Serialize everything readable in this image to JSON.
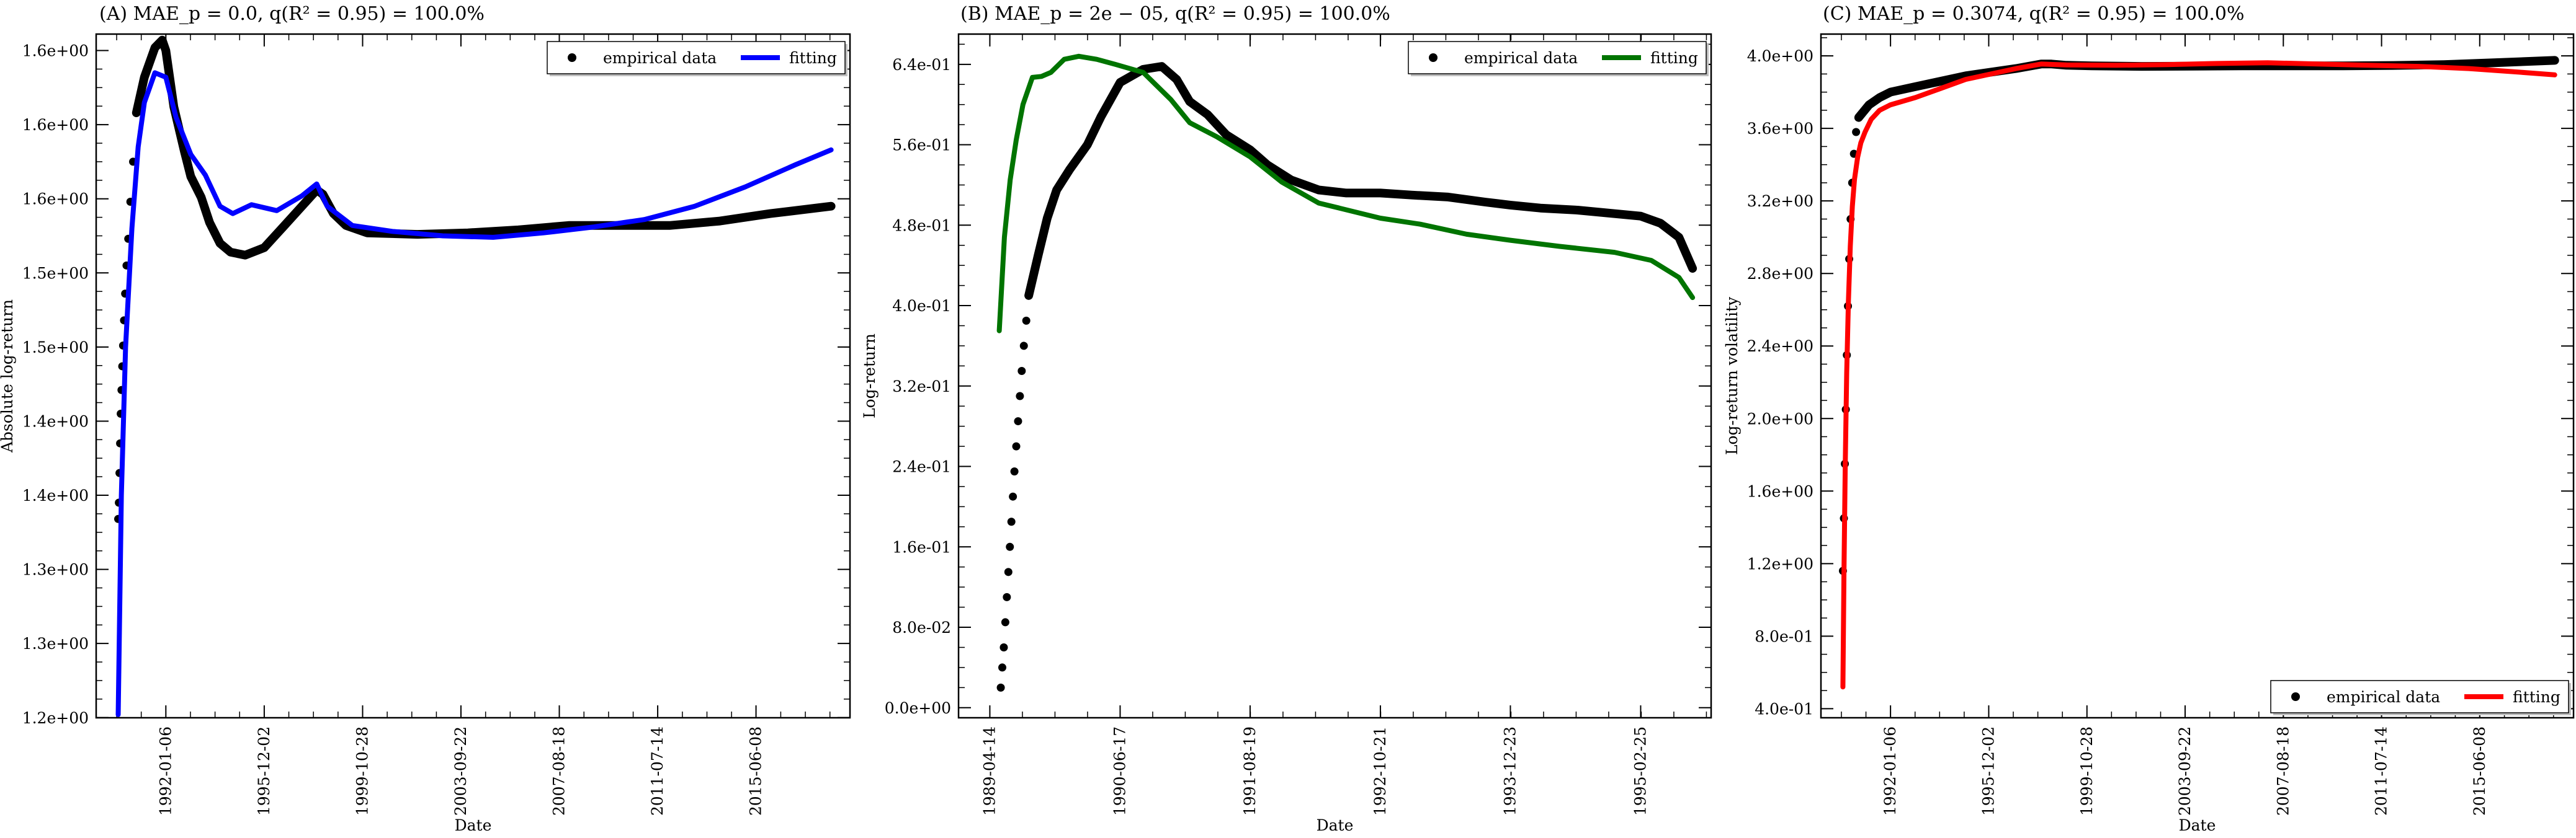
{
  "chart_data": [
    {
      "type": "line",
      "title": "(A) MAE_p = 0.0, q(R² = 0.95) = 100.0%",
      "xlabel": "Date",
      "ylabel": "Absolute log-return",
      "x_range": [
        "1989-04-01",
        "2019-03-01"
      ],
      "ylim": [
        1.1999,
        1.6611
      ],
      "x_tick_labels": [
        "1992-01-06",
        "1995-12-02",
        "1999-10-28",
        "2003-09-22",
        "2007-08-18",
        "2011-07-14",
        "2015-06-08"
      ],
      "y_ticks": [
        1.2,
        1.25,
        1.3,
        1.35,
        1.4,
        1.45,
        1.5,
        1.55,
        1.6,
        1.65
      ],
      "y_tick_labels": [
        "1.2e+00",
        "1.3e+00",
        "1.3e+00",
        "1.4e+00",
        "1.4e+00",
        "1.5e+00",
        "1.5e+00",
        "1.6e+00",
        "1.6e+00",
        "1.6e+00"
      ],
      "legend": {
        "position": "top-right",
        "entries": [
          "empirical data",
          "fitting"
        ]
      },
      "grid": false,
      "series": [
        {
          "name": "empirical data",
          "style": "dots",
          "color": "#000000",
          "x": [
            "1990-02-14",
            "1990-02-24",
            "1990-03-05",
            "1990-03-14",
            "1990-03-23",
            "1990-04-03",
            "1990-04-14",
            "1990-04-26",
            "1990-05-10",
            "1990-05-26",
            "1990-06-15",
            "1990-07-10",
            "1990-08-10",
            "1990-09-18",
            "1990-11-05"
          ],
          "y": [
            1.334,
            1.345,
            1.365,
            1.385,
            1.405,
            1.421,
            1.437,
            1.451,
            1.468,
            1.486,
            1.505,
            1.523,
            1.548,
            1.575,
            1.608
          ]
        },
        {
          "name": "empirical data",
          "style": "line",
          "color": "#000000",
          "x": [
            "1990-11-05",
            "1991-03-01",
            "1991-08-01",
            "1991-11-15",
            "1992-01-06",
            "1992-05-01",
            "1992-10-01",
            "1993-01-01",
            "1993-06-01",
            "1993-10-01",
            "1994-03-01",
            "1994-08-01",
            "1995-03-01",
            "1995-12-01",
            "1996-09-01",
            "1997-06-01",
            "1998-01-01",
            "1998-04-01",
            "1998-09-01",
            "1999-03-01",
            "2000-01-01",
            "2002-01-01",
            "2004-01-01",
            "2006-01-01",
            "2008-01-01",
            "2010-01-01",
            "2012-01-01",
            "2014-01-01",
            "2016-01-01",
            "2018-06-01"
          ],
          "y": [
            1.608,
            1.632,
            1.652,
            1.657,
            1.65,
            1.612,
            1.582,
            1.565,
            1.551,
            1.534,
            1.52,
            1.514,
            1.512,
            1.517,
            1.531,
            1.545,
            1.556,
            1.553,
            1.54,
            1.532,
            1.527,
            1.526,
            1.527,
            1.529,
            1.532,
            1.532,
            1.532,
            1.535,
            1.54,
            1.545
          ]
        },
        {
          "name": "fitting",
          "style": "line",
          "color": "#0000ff",
          "x": [
            "1990-02-14",
            "1990-04-01",
            "1990-06-01",
            "1990-09-01",
            "1990-12-01",
            "1991-03-01",
            "1991-08-01",
            "1992-01-06",
            "1992-06-01",
            "1993-01-01",
            "1993-08-01",
            "1994-03-01",
            "1994-09-01",
            "1995-06-01",
            "1996-06-01",
            "1997-06-01",
            "1998-01-01",
            "1998-06-01",
            "1999-06-01",
            "2001-01-01",
            "2003-01-01",
            "2005-01-01",
            "2007-01-01",
            "2009-01-01",
            "2011-01-01",
            "2013-01-01",
            "2015-01-01",
            "2017-01-01",
            "2018-06-01"
          ],
          "y": [
            1.202,
            1.35,
            1.45,
            1.53,
            1.585,
            1.615,
            1.635,
            1.632,
            1.605,
            1.58,
            1.566,
            1.545,
            1.54,
            1.546,
            1.542,
            1.552,
            1.56,
            1.545,
            1.532,
            1.528,
            1.525,
            1.524,
            1.527,
            1.531,
            1.536,
            1.545,
            1.558,
            1.573,
            1.583
          ]
        }
      ]
    },
    {
      "type": "line",
      "title": "(B) MAE_p = 2e − 05, q(R² = 0.95) = 100.0%",
      "xlabel": "Date",
      "ylabel": "Log-return",
      "x_range": [
        "1989-01-01",
        "1995-10-15"
      ],
      "ylim": [
        -0.01,
        0.6701
      ],
      "x_tick_labels": [
        "1989-04-14",
        "1990-06-17",
        "1991-08-19",
        "1992-10-21",
        "1993-12-23",
        "1995-02-25"
      ],
      "y_ticks": [
        0.0,
        0.08,
        0.16,
        0.24,
        0.32,
        0.4,
        0.48,
        0.56,
        0.64
      ],
      "y_tick_labels": [
        "0.0e+00",
        "8.0e-02",
        "1.6e-01",
        "2.4e-01",
        "3.2e-01",
        "4.0e-01",
        "4.8e-01",
        "5.6e-01",
        "6.4e-01"
      ],
      "legend": {
        "position": "top-right",
        "entries": [
          "empirical data",
          "fitting"
        ]
      },
      "grid": false,
      "series": [
        {
          "name": "empirical data",
          "style": "dots",
          "color": "#000000",
          "x": [
            "1989-05-20",
            "1989-05-25",
            "1989-05-30",
            "1989-06-04",
            "1989-06-09",
            "1989-06-14",
            "1989-06-19",
            "1989-06-24",
            "1989-06-29",
            "1989-07-04",
            "1989-07-10",
            "1989-07-16",
            "1989-07-22",
            "1989-07-28",
            "1989-08-04",
            "1989-08-12",
            "1989-08-20"
          ],
          "y": [
            0.02,
            0.04,
            0.06,
            0.085,
            0.11,
            0.135,
            0.16,
            0.185,
            0.21,
            0.235,
            0.26,
            0.285,
            0.31,
            0.335,
            0.36,
            0.385,
            0.41
          ]
        },
        {
          "name": "empirical data",
          "style": "line",
          "color": "#000000",
          "x": [
            "1989-08-20",
            "1989-09-20",
            "1989-10-20",
            "1989-11-20",
            "1990-01-01",
            "1990-03-01",
            "1990-04-15",
            "1990-06-17",
            "1990-09-01",
            "1990-11-01",
            "1990-12-20",
            "1991-02-01",
            "1991-04-01",
            "1991-06-01",
            "1991-08-19",
            "1991-10-15",
            "1992-01-01",
            "1992-04-01",
            "1992-07-01",
            "1992-10-21",
            "1993-02-01",
            "1993-06-01",
            "1993-10-01",
            "1993-12-23",
            "1994-04-01",
            "1994-08-01",
            "1995-02-25",
            "1995-05-01",
            "1995-07-01",
            "1995-08-15"
          ],
          "y": [
            0.41,
            0.45,
            0.487,
            0.515,
            0.535,
            0.56,
            0.588,
            0.622,
            0.635,
            0.638,
            0.625,
            0.603,
            0.59,
            0.57,
            0.555,
            0.54,
            0.525,
            0.515,
            0.512,
            0.512,
            0.51,
            0.508,
            0.503,
            0.5,
            0.497,
            0.495,
            0.489,
            0.482,
            0.468,
            0.437
          ]
        },
        {
          "name": "fitting",
          "style": "line",
          "color": "#007400",
          "x": [
            "1989-05-15",
            "1989-06-01",
            "1989-06-20",
            "1989-07-10",
            "1989-08-01",
            "1989-09-01",
            "1989-10-01",
            "1989-11-01",
            "1989-12-15",
            "1990-02-01",
            "1990-04-01",
            "1990-06-01",
            "1990-09-01",
            "1990-12-01",
            "1991-02-01",
            "1991-05-01",
            "1991-08-19",
            "1991-12-01",
            "1992-04-01",
            "1992-10-21",
            "1993-03-01",
            "1993-08-01",
            "1993-12-23",
            "1994-06-01",
            "1994-12-01",
            "1995-04-01",
            "1995-07-01",
            "1995-08-15"
          ],
          "y": [
            0.375,
            0.468,
            0.525,
            0.565,
            0.6,
            0.627,
            0.628,
            0.632,
            0.645,
            0.648,
            0.645,
            0.64,
            0.632,
            0.605,
            0.582,
            0.568,
            0.548,
            0.523,
            0.502,
            0.487,
            0.481,
            0.471,
            0.465,
            0.459,
            0.453,
            0.445,
            0.428,
            0.408
          ]
        }
      ]
    },
    {
      "type": "line",
      "title": "(C) MAE_p = 0.3074, q(R² = 0.95) = 100.0%",
      "xlabel": "Date",
      "ylabel": "Log-return volatility",
      "x_range": [
        "1989-04-01",
        "2019-03-01"
      ],
      "ylim": [
        0.35,
        4.12
      ],
      "x_tick_labels": [
        "1992-01-06",
        "1995-12-02",
        "1999-10-28",
        "2003-09-22",
        "2007-08-18",
        "2011-07-14",
        "2015-06-08"
      ],
      "y_ticks": [
        0.4,
        0.8,
        1.2,
        1.6,
        2.0,
        2.4,
        2.8,
        3.2,
        3.6,
        4.0
      ],
      "y_tick_labels": [
        "4.0e-01",
        "8.0e-01",
        "1.2e+00",
        "1.6e+00",
        "2.0e+00",
        "2.4e+00",
        "2.8e+00",
        "3.2e+00",
        "3.6e+00",
        "4.0e+00"
      ],
      "legend": {
        "position": "bottom-right",
        "entries": [
          "empirical data",
          "fitting"
        ]
      },
      "grid": false,
      "series": [
        {
          "name": "empirical data",
          "style": "dots",
          "color": "#000000",
          "x": [
            "1990-02-14",
            "1990-02-28",
            "1990-03-14",
            "1990-03-28",
            "1990-04-12",
            "1990-04-28",
            "1990-05-16",
            "1990-06-05",
            "1990-06-28",
            "1990-07-24",
            "1990-08-24",
            "1990-10-01"
          ],
          "y": [
            1.16,
            1.45,
            1.75,
            2.05,
            2.35,
            2.62,
            2.88,
            3.1,
            3.3,
            3.46,
            3.58,
            3.66
          ]
        },
        {
          "name": "empirical data",
          "style": "line",
          "color": "#000000",
          "x": [
            "1990-10-01",
            "1991-03-01",
            "1991-08-01",
            "1992-01-06",
            "1993-01-01",
            "1994-01-01",
            "1995-01-01",
            "1996-01-01",
            "1997-01-01",
            "1998-01-01",
            "1998-06-01",
            "1999-01-01",
            "2000-01-01",
            "2002-01-01",
            "2004-01-01",
            "2006-01-01",
            "2008-01-01",
            "2010-01-01",
            "2012-01-01",
            "2014-01-01",
            "2016-01-01",
            "2018-06-01"
          ],
          "y": [
            3.66,
            3.73,
            3.77,
            3.8,
            3.83,
            3.86,
            3.89,
            3.91,
            3.93,
            3.955,
            3.955,
            3.948,
            3.945,
            3.942,
            3.943,
            3.945,
            3.945,
            3.945,
            3.947,
            3.952,
            3.962,
            3.975
          ]
        },
        {
          "name": "fitting",
          "style": "line",
          "color": "#ff0000",
          "x": [
            "1990-02-14",
            "1990-03-01",
            "1990-03-20",
            "1990-04-10",
            "1990-05-05",
            "1990-06-01",
            "1990-07-01",
            "1990-08-01",
            "1990-09-15",
            "1990-11-01",
            "1991-01-01",
            "1991-04-01",
            "1991-08-01",
            "1992-01-06",
            "1993-01-01",
            "1994-01-01",
            "1995-01-01",
            "1996-01-01",
            "1997-01-01",
            "1998-01-01",
            "1999-01-01",
            "2001-01-01",
            "2003-01-01",
            "2005-01-01",
            "2007-01-01",
            "2009-01-01",
            "2011-01-01",
            "2013-01-01",
            "2015-01-01",
            "2017-01-01",
            "2018-06-01"
          ],
          "y": [
            0.52,
            1.15,
            1.75,
            2.25,
            2.65,
            2.95,
            3.17,
            3.32,
            3.44,
            3.52,
            3.58,
            3.65,
            3.7,
            3.73,
            3.77,
            3.82,
            3.87,
            3.9,
            3.93,
            3.955,
            3.95,
            3.948,
            3.952,
            3.958,
            3.962,
            3.955,
            3.948,
            3.942,
            3.93,
            3.91,
            3.895
          ]
        }
      ]
    }
  ]
}
